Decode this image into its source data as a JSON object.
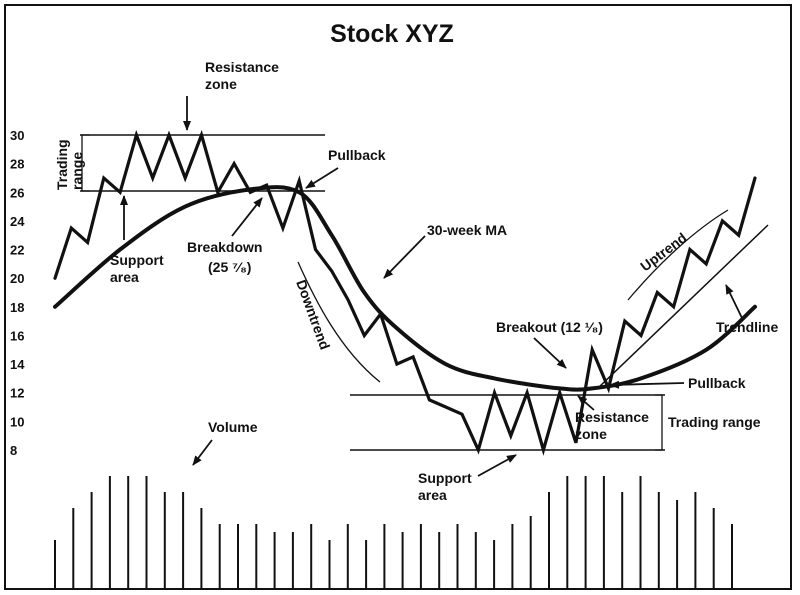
{
  "chart_data": {
    "type": "line",
    "title": "Stock XYZ",
    "y_ticks": [
      "30",
      "28",
      "26",
      "24",
      "22",
      "20",
      "18",
      "16",
      "14",
      "12",
      "10",
      "8"
    ],
    "ylim": [
      8,
      30
    ],
    "series": [
      {
        "points": [
          [
            0,
            20
          ],
          [
            1,
            23.5
          ],
          [
            2,
            22.5
          ],
          [
            3,
            27
          ],
          [
            4,
            26
          ],
          [
            5,
            30
          ],
          [
            6,
            27
          ],
          [
            7,
            30
          ],
          [
            8,
            27
          ],
          [
            9,
            30
          ],
          [
            10,
            26
          ],
          [
            11,
            28
          ],
          [
            12,
            26
          ],
          [
            13,
            26.5
          ],
          [
            14,
            23.5
          ],
          [
            15,
            26.8
          ],
          [
            16,
            22
          ],
          [
            17,
            20.5
          ],
          [
            18,
            18.5
          ],
          [
            19,
            16
          ],
          [
            20,
            17.5
          ],
          [
            21,
            14
          ],
          [
            22,
            14.5
          ],
          [
            23,
            11.5
          ],
          [
            24,
            11
          ],
          [
            25,
            10.5
          ],
          [
            26,
            8
          ],
          [
            27,
            12
          ],
          [
            28,
            9
          ],
          [
            29,
            12
          ],
          [
            30,
            8
          ],
          [
            31,
            12
          ],
          [
            32,
            8.5
          ],
          [
            33,
            15
          ],
          [
            34,
            12.3
          ],
          [
            35,
            17
          ],
          [
            36,
            16
          ],
          [
            37,
            19
          ],
          [
            38,
            18
          ],
          [
            39,
            22
          ],
          [
            40,
            21
          ],
          [
            41,
            24
          ],
          [
            42,
            23
          ],
          [
            43,
            27
          ]
        ]
      },
      {
        "name": "30-week MA",
        "points": [
          [
            0,
            18
          ],
          [
            4,
            22
          ],
          [
            8,
            25
          ],
          [
            12,
            26.2
          ],
          [
            15,
            26
          ],
          [
            17,
            23
          ],
          [
            19,
            19
          ],
          [
            21,
            16.5
          ],
          [
            24,
            14
          ],
          [
            27,
            13
          ],
          [
            31,
            12.3
          ],
          [
            33,
            12.3
          ],
          [
            36,
            13
          ],
          [
            40,
            15
          ],
          [
            43,
            18
          ]
        ]
      }
    ],
    "volume": [
      3,
      5,
      6,
      7,
      7,
      7,
      6,
      6,
      5,
      4,
      4,
      4,
      3.5,
      3.5,
      4,
      3,
      4,
      3,
      4,
      3.5,
      4,
      3.5,
      4,
      3.5,
      3,
      4,
      4.5,
      6,
      7,
      7,
      7,
      6,
      7,
      6,
      5.5,
      6,
      5,
      4
    ],
    "annotations": {
      "trading_range_top": "Trading range",
      "trading_range_bottom": "Trading range",
      "resistance_zone_top": "Resistance zone",
      "support_area_top": "Support area",
      "pullback_top": "Pullback",
      "breakdown": "Breakdown",
      "breakdown_price": "(25 ⁷⁄₈)",
      "ma_label": "30-week MA",
      "downtrend": "Downtrend",
      "volume": "Volume",
      "breakout": "Breakout (12 ¹⁄₈)",
      "uptrend": "Uptrend",
      "trendline": "Trendline",
      "pullback_bottom": "Pullback",
      "resistance_zone_bottom": "Resistance zone",
      "support_area_bottom": "Support area"
    }
  }
}
